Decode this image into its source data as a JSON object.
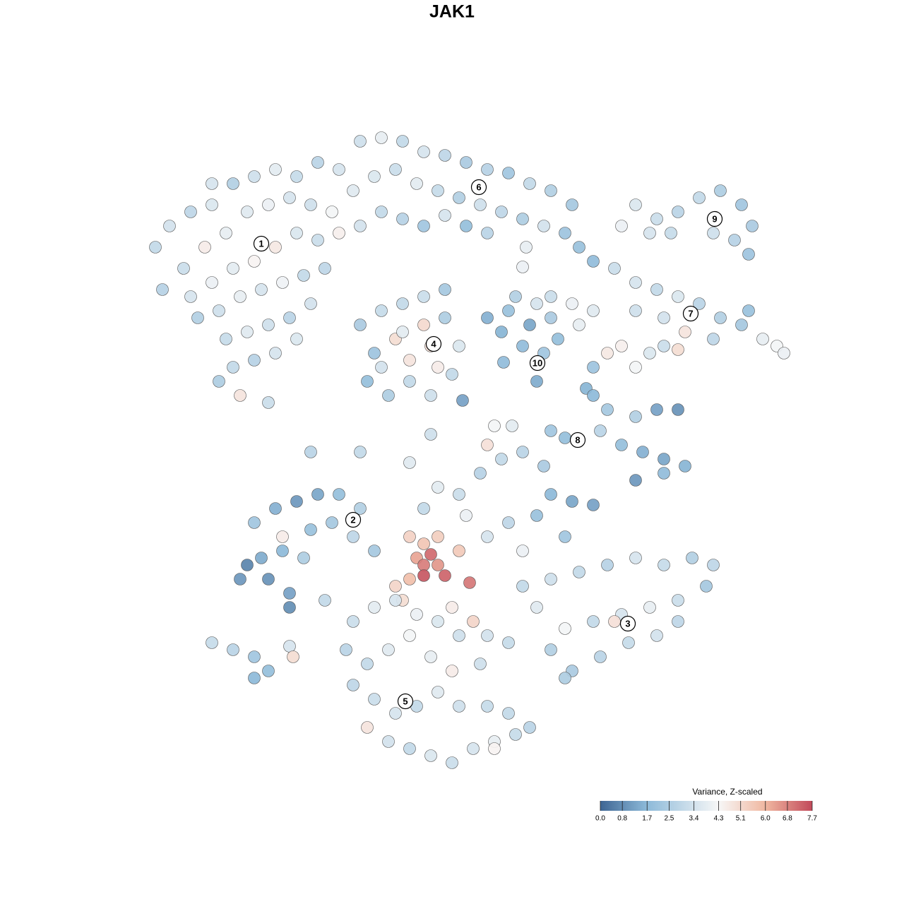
{
  "chart_data": {
    "type": "scatter",
    "title": "JAK1",
    "xlim": [
      -15,
      113
    ],
    "ylim": [
      -18,
      110
    ],
    "x": [
      7,
      9,
      12,
      15,
      18,
      21,
      24,
      27,
      30,
      33,
      11,
      14,
      17,
      20,
      23,
      26,
      29,
      32,
      8,
      12,
      15,
      18,
      21,
      24,
      27,
      30,
      33,
      36,
      13,
      16,
      19,
      22,
      25,
      28,
      31,
      17,
      20,
      23,
      26,
      29,
      18,
      21,
      24,
      19,
      23,
      16,
      27,
      15,
      36,
      39,
      42,
      45,
      48,
      51,
      54,
      57,
      60,
      63,
      66,
      38,
      41,
      44,
      47,
      50,
      53,
      56,
      59,
      62,
      65,
      39,
      42,
      45,
      48,
      51,
      54,
      67,
      69,
      35,
      75,
      78,
      81,
      84,
      87,
      90,
      91.5,
      89,
      86,
      73,
      77,
      80,
      91,
      72,
      75,
      78,
      81,
      84,
      87,
      90,
      93,
      95,
      96,
      75,
      79,
      82,
      86,
      91,
      36,
      38,
      37,
      40,
      43,
      46,
      49,
      50,
      48,
      45,
      42,
      39,
      41,
      43,
      46,
      45,
      47,
      42,
      39,
      48,
      54,
      57,
      60,
      63,
      59,
      62,
      61,
      64,
      56,
      58,
      63,
      61,
      66,
      69,
      67,
      71,
      73,
      75,
      77,
      79,
      81,
      69,
      68,
      69,
      71,
      75,
      78,
      81,
      73,
      76,
      79,
      82,
      75,
      79,
      63,
      65,
      70,
      20,
      23,
      26,
      19,
      22,
      25,
      28,
      21,
      24,
      27,
      30,
      33,
      36,
      32,
      29,
      35,
      38,
      26,
      31,
      25,
      15,
      18,
      21,
      23,
      21,
      26,
      26.5,
      43,
      45,
      47,
      44,
      46,
      45,
      47,
      43,
      45,
      48,
      51.5,
      41,
      42,
      50,
      52,
      49,
      47,
      50,
      53,
      56,
      59,
      62,
      63,
      66,
      69,
      61,
      57,
      54,
      51,
      45,
      59,
      65,
      63,
      67,
      71,
      75,
      79,
      83,
      86,
      85,
      81,
      77,
      73,
      69,
      65,
      63,
      66,
      70,
      74,
      78,
      81,
      61,
      59,
      65,
      72,
      35,
      38,
      41,
      44,
      47,
      50,
      54,
      57,
      34,
      37,
      40,
      43,
      46,
      49,
      53,
      35,
      38,
      41,
      44,
      47,
      50,
      54,
      57,
      60,
      37,
      40,
      43,
      46,
      49,
      52,
      55,
      58,
      55,
      29,
      36,
      43,
      46,
      50.5,
      55,
      57.5,
      54,
      59,
      59.5,
      56.3
    ],
    "y": [
      75,
      78,
      80,
      81,
      84,
      85,
      86,
      85,
      87,
      86,
      72,
      75,
      77,
      80,
      81,
      82,
      81,
      80,
      69,
      68,
      70,
      72,
      73,
      75,
      77,
      76,
      77,
      78,
      65,
      66,
      68,
      69,
      70,
      71,
      72,
      62,
      63,
      64,
      65,
      67,
      58,
      59,
      60,
      54,
      53,
      56,
      62,
      84,
      90,
      90.5,
      90,
      88.5,
      88,
      87,
      86,
      85.5,
      84,
      83,
      81,
      85,
      86,
      84,
      83,
      82,
      81,
      80,
      79,
      78,
      77,
      80,
      79,
      78,
      79.5,
      78,
      77,
      75,
      73,
      83,
      81,
      79,
      80,
      82,
      83,
      81,
      78,
      76,
      77,
      78,
      77,
      77,
      74,
      72,
      70,
      69,
      68,
      67,
      65,
      64,
      62,
      61,
      60,
      66,
      65,
      63,
      62,
      66,
      64,
      60,
      56,
      54,
      56,
      54,
      57,
      61,
      65,
      68,
      67,
      66,
      62,
      59,
      61,
      64,
      58,
      63,
      58,
      69,
      65,
      66,
      64,
      65,
      61,
      60,
      56,
      62,
      63,
      68,
      68,
      67,
      67,
      66,
      64,
      60,
      61,
      58,
      60,
      61,
      60.5,
      58,
      55,
      54,
      52,
      51,
      52,
      52,
      47,
      46,
      45,
      44,
      42,
      43,
      49,
      48,
      49,
      30,
      28,
      26,
      28,
      31,
      32,
      31,
      36,
      38,
      39,
      40,
      40,
      38,
      36,
      35,
      34,
      32,
      24,
      25,
      34,
      19,
      18,
      17,
      15,
      14,
      18.5,
      17,
      34,
      33,
      34,
      31,
      31.5,
      30,
      30,
      28,
      28.5,
      28.5,
      27.5,
      27,
      25,
      32,
      22,
      24,
      41,
      40,
      43,
      45,
      46,
      44,
      40,
      39,
      38.5,
      37,
      36,
      34,
      37,
      38,
      32,
      34,
      28,
      29,
      30,
      31,
      30,
      31,
      30,
      27,
      25,
      24,
      23,
      22,
      21,
      18,
      15,
      17,
      19,
      20,
      22,
      24,
      27,
      14,
      22,
      22,
      24,
      25,
      23,
      22,
      20,
      20,
      19,
      18,
      16,
      18,
      20,
      17,
      15,
      16,
      13,
      11,
      9,
      10,
      12,
      10,
      10,
      9,
      7,
      7,
      5,
      4,
      3,
      2,
      4,
      5,
      6,
      4,
      46,
      46,
      44.5,
      48.5,
      53.3,
      49.7,
      49.7,
      47,
      72.2,
      75,
      58.7
    ],
    "values": [
      3.0,
      3.4,
      2.9,
      3.6,
      2.6,
      3.3,
      3.8,
      3.1,
      2.8,
      3.5,
      3.2,
      4.6,
      3.9,
      3.7,
      4.0,
      3.5,
      3.3,
      4.2,
      2.7,
      3.5,
      4.0,
      3.8,
      4.4,
      4.7,
      3.6,
      3.2,
      4.5,
      3.4,
      2.6,
      3.3,
      3.9,
      3.5,
      4.1,
      3.0,
      2.9,
      3.1,
      3.7,
      3.3,
      2.8,
      3.4,
      3.0,
      2.7,
      3.5,
      4.8,
      3.2,
      2.5,
      3.6,
      3.5,
      3.3,
      3.9,
      3.0,
      3.5,
      2.9,
      2.4,
      2.7,
      2.2,
      3.0,
      2.6,
      2.3,
      3.6,
      3.2,
      3.8,
      3.1,
      2.6,
      3.3,
      2.9,
      2.5,
      3.4,
      2.1,
      3.0,
      2.7,
      2.2,
      3.5,
      1.9,
      2.8,
      2.0,
      1.8,
      3.7,
      3.6,
      3.2,
      2.8,
      3.0,
      2.5,
      2.2,
      2.4,
      2.7,
      3.3,
      4.0,
      3.5,
      3.1,
      2.1,
      3.2,
      3.5,
      3.0,
      3.6,
      2.8,
      2.6,
      2.3,
      3.9,
      4.2,
      4.0,
      3.3,
      3.4,
      4.8,
      2.9,
      2.0,
      2.4,
      2.1,
      1.9,
      2.5,
      3.0,
      3.3,
      3.0,
      3.6,
      2.5,
      3.2,
      3.0,
      3.1,
      5.0,
      4.8,
      4.9,
      5.1,
      4.6,
      3.8,
      3.4,
      2.3,
      1.5,
      2.0,
      1.3,
      2.4,
      1.8,
      2.2,
      1.4,
      1.9,
      1.6,
      2.6,
      3.2,
      3.5,
      4.0,
      3.7,
      3.9,
      4.7,
      4.5,
      4.2,
      3.6,
      3.2,
      5.0,
      2.1,
      1.6,
      1.7,
      2.3,
      2.6,
      1.2,
      0.9,
      1.9,
      1.5,
      1.3,
      1.6,
      1.0,
      1.8,
      2.2,
      1.9,
      2.8,
      0.6,
      0.9,
      1.2,
      1.0,
      1.4,
      1.7,
      2.5,
      2.2,
      1.5,
      1.0,
      1.3,
      1.9,
      2.6,
      2.3,
      2.0,
      2.9,
      2.3,
      0.8,
      3.0,
      4.6,
      3.1,
      2.8,
      2.2,
      1.9,
      1.7,
      3.5,
      5.0,
      5.3,
      5.6,
      5.4,
      6.3,
      7.2,
      6.9,
      6.5,
      5.8,
      7.5,
      7.3,
      7.0,
      5.2,
      5.0,
      5.5,
      5.2,
      4.6,
      3.8,
      3.2,
      2.7,
      3.0,
      2.8,
      2.4,
      1.7,
      1.3,
      1.2,
      2.0,
      2.9,
      3.5,
      4.0,
      3.0,
      4.0,
      2.2,
      3.3,
      3.0,
      2.7,
      3.5,
      3.1,
      2.6,
      2.9,
      2.3,
      3.2,
      3.9,
      3.5,
      3.0,
      4.2,
      2.6,
      2.4,
      2.8,
      3.1,
      3.4,
      2.9,
      3.7,
      3.0,
      2.5,
      4.9,
      3.2,
      3.8,
      3.5,
      4.0,
      3.6,
      3.3,
      3.4,
      3.1,
      2.8,
      3.0,
      3.7,
      4.2,
      3.9,
      4.6,
      3.3,
      2.9,
      3.2,
      3.5,
      3.0,
      3.7,
      3.3,
      3.1,
      3.0,
      2.8,
      4.8,
      3.4,
      3.0,
      3.6,
      3.2,
      3.5,
      3.9,
      3.1,
      4.4,
      2.8,
      3.0,
      3.7,
      3.3,
      1.2,
      4.2,
      3.8,
      4.9,
      4.0,
      3.9,
      1.8
    ],
    "cluster_labels": [
      {
        "label": "1",
        "x": 22,
        "y": 75.5
      },
      {
        "label": "6",
        "x": 52.8,
        "y": 83.5
      },
      {
        "label": "9",
        "x": 86.2,
        "y": 79
      },
      {
        "label": "7",
        "x": 82.8,
        "y": 65.6
      },
      {
        "label": "4",
        "x": 46.4,
        "y": 61.3
      },
      {
        "label": "10",
        "x": 61.1,
        "y": 58.6
      },
      {
        "label": "8",
        "x": 66.8,
        "y": 47.7
      },
      {
        "label": "2",
        "x": 35,
        "y": 36.4
      },
      {
        "label": "3",
        "x": 73.9,
        "y": 21.7
      },
      {
        "label": "5",
        "x": 42.4,
        "y": 10.7
      }
    ],
    "colorbar": {
      "title": "Variance, Z-scaled",
      "clim": [
        0,
        7.7
      ],
      "ticks": [
        {
          "value": 0,
          "label": "0.0"
        },
        0.8,
        1.7,
        2.5,
        3.4,
        4.3,
        5.1,
        {
          "value": 6,
          "label": "6.0"
        },
        6.8,
        7.7
      ],
      "color_stops": [
        {
          "value": 0,
          "color": "#3e6694"
        },
        {
          "value": 1.7,
          "color": "#8dbad9"
        },
        {
          "value": 4.3,
          "color": "#f7f7f7"
        },
        {
          "value": 6,
          "color": "#f0b7a0"
        },
        {
          "value": 7.7,
          "color": "#c24a5a"
        }
      ]
    }
  }
}
